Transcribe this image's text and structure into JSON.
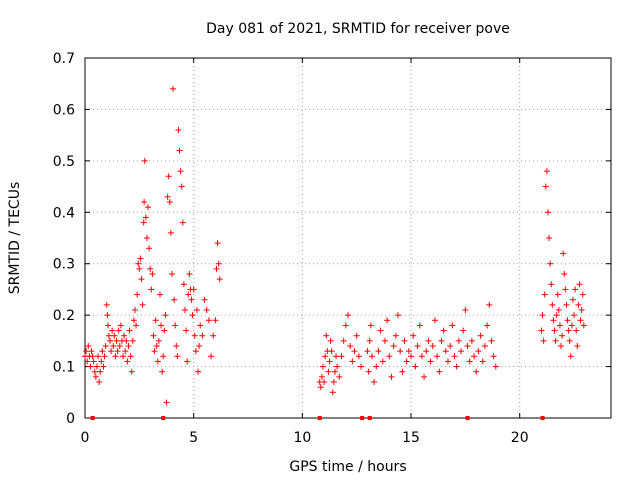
{
  "chart_data": {
    "type": "scatter",
    "title": "Day 081 of 2021, SRMTID for receiver pove",
    "xlabel": "GPS time / hours",
    "ylabel": "SRMTID / TECUs",
    "xlim": [
      0,
      24.2
    ],
    "ylim": [
      0,
      0.7
    ],
    "xticks": [
      0,
      5,
      10,
      15,
      20
    ],
    "xtick_labels": [
      "0",
      "5",
      "10",
      "15",
      "20"
    ],
    "yticks": [
      0,
      0.1,
      0.2,
      0.3,
      0.4,
      0.5,
      0.6,
      0.7
    ],
    "ytick_labels": [
      "0",
      "0.1",
      "0.2",
      "0.3",
      "0.4",
      "0.5",
      "0.6",
      "0.7"
    ],
    "grid": true,
    "marker": "+",
    "marker_color": "#ff0000",
    "series": [
      {
        "name": "SRMTID",
        "points": [
          [
            0.0,
            0.12
          ],
          [
            0.05,
            0.13
          ],
          [
            0.1,
            0.11
          ],
          [
            0.15,
            0.14
          ],
          [
            0.2,
            0.12
          ],
          [
            0.25,
            0.1
          ],
          [
            0.3,
            0.13
          ],
          [
            0.35,
            0.12
          ],
          [
            0.4,
            0.11
          ],
          [
            0.45,
            0.09
          ],
          [
            0.5,
            0.08
          ],
          [
            0.55,
            0.1
          ],
          [
            0.6,
            0.12
          ],
          [
            0.65,
            0.07
          ],
          [
            0.7,
            0.09
          ],
          [
            0.75,
            0.11
          ],
          [
            0.8,
            0.13
          ],
          [
            0.85,
            0.1
          ],
          [
            0.9,
            0.12
          ],
          [
            0.95,
            0.14
          ],
          [
            1.0,
            0.22
          ],
          [
            1.03,
            0.2
          ],
          [
            1.06,
            0.18
          ],
          [
            1.1,
            0.16
          ],
          [
            1.15,
            0.15
          ],
          [
            1.2,
            0.13
          ],
          [
            1.25,
            0.17
          ],
          [
            1.3,
            0.14
          ],
          [
            1.35,
            0.16
          ],
          [
            1.4,
            0.12
          ],
          [
            1.45,
            0.15
          ],
          [
            1.5,
            0.13
          ],
          [
            1.55,
            0.17
          ],
          [
            1.6,
            0.14
          ],
          [
            1.65,
            0.18
          ],
          [
            1.7,
            0.15
          ],
          [
            1.75,
            0.12
          ],
          [
            1.8,
            0.16
          ],
          [
            1.85,
            0.13
          ],
          [
            1.9,
            0.15
          ],
          [
            1.95,
            0.11
          ],
          [
            2.0,
            0.14
          ],
          [
            2.05,
            0.17
          ],
          [
            2.1,
            0.12
          ],
          [
            2.15,
            0.09
          ],
          [
            2.2,
            0.15
          ],
          [
            2.25,
            0.19
          ],
          [
            2.3,
            0.21
          ],
          [
            2.35,
            0.18
          ],
          [
            2.4,
            0.24
          ],
          [
            2.45,
            0.3
          ],
          [
            2.5,
            0.29
          ],
          [
            2.55,
            0.31
          ],
          [
            2.6,
            0.27
          ],
          [
            2.65,
            0.22
          ],
          [
            2.7,
            0.38
          ],
          [
            2.72,
            0.42
          ],
          [
            2.75,
            0.5
          ],
          [
            2.8,
            0.39
          ],
          [
            2.85,
            0.35
          ],
          [
            2.9,
            0.41
          ],
          [
            2.95,
            0.33
          ],
          [
            3.0,
            0.29
          ],
          [
            3.05,
            0.25
          ],
          [
            3.1,
            0.28
          ],
          [
            3.15,
            0.16
          ],
          [
            3.2,
            0.13
          ],
          [
            3.25,
            0.19
          ],
          [
            3.3,
            0.14
          ],
          [
            3.35,
            0.11
          ],
          [
            3.4,
            0.15
          ],
          [
            3.45,
            0.24
          ],
          [
            3.5,
            0.18
          ],
          [
            3.55,
            0.09
          ],
          [
            3.6,
            0.12
          ],
          [
            3.65,
            0.17
          ],
          [
            3.7,
            0.2
          ],
          [
            3.75,
            0.03
          ],
          [
            3.8,
            0.43
          ],
          [
            3.85,
            0.47
          ],
          [
            3.9,
            0.42
          ],
          [
            3.95,
            0.36
          ],
          [
            4.0,
            0.28
          ],
          [
            4.05,
            0.64
          ],
          [
            4.1,
            0.23
          ],
          [
            4.15,
            0.18
          ],
          [
            4.2,
            0.14
          ],
          [
            4.25,
            0.12
          ],
          [
            4.3,
            0.56
          ],
          [
            4.35,
            0.52
          ],
          [
            4.4,
            0.48
          ],
          [
            4.45,
            0.45
          ],
          [
            4.5,
            0.38
          ],
          [
            4.55,
            0.26
          ],
          [
            4.6,
            0.21
          ],
          [
            4.65,
            0.17
          ],
          [
            4.7,
            0.11
          ],
          [
            4.75,
            0.24
          ],
          [
            4.8,
            0.28
          ],
          [
            4.85,
            0.25
          ],
          [
            4.9,
            0.23
          ],
          [
            4.95,
            0.2
          ],
          [
            5.0,
            0.25
          ],
          [
            5.05,
            0.16
          ],
          [
            5.1,
            0.13
          ],
          [
            5.15,
            0.21
          ],
          [
            5.2,
            0.09
          ],
          [
            5.25,
            0.14
          ],
          [
            5.3,
            0.18
          ],
          [
            5.4,
            0.16
          ],
          [
            5.5,
            0.23
          ],
          [
            5.6,
            0.21
          ],
          [
            5.7,
            0.19
          ],
          [
            5.8,
            0.12
          ],
          [
            5.9,
            0.16
          ],
          [
            6.0,
            0.19
          ],
          [
            6.05,
            0.29
          ],
          [
            6.1,
            0.34
          ],
          [
            6.15,
            0.3
          ],
          [
            6.2,
            0.27
          ],
          [
            10.8,
            0.07
          ],
          [
            10.85,
            0.06
          ],
          [
            10.9,
            0.08
          ],
          [
            10.95,
            0.1
          ],
          [
            11.0,
            0.07
          ],
          [
            11.05,
            0.12
          ],
          [
            11.1,
            0.16
          ],
          [
            11.15,
            0.13
          ],
          [
            11.2,
            0.09
          ],
          [
            11.25,
            0.11
          ],
          [
            11.3,
            0.15
          ],
          [
            11.35,
            0.13
          ],
          [
            11.4,
            0.05
          ],
          [
            11.45,
            0.07
          ],
          [
            11.5,
            0.09
          ],
          [
            11.55,
            0.12
          ],
          [
            11.6,
            0.1
          ],
          [
            11.7,
            0.08
          ],
          [
            11.8,
            0.12
          ],
          [
            11.9,
            0.15
          ],
          [
            12.0,
            0.18
          ],
          [
            12.1,
            0.2
          ],
          [
            12.2,
            0.14
          ],
          [
            12.3,
            0.11
          ],
          [
            12.4,
            0.13
          ],
          [
            12.5,
            0.16
          ],
          [
            12.6,
            0.12
          ],
          [
            12.7,
            0.1
          ],
          [
            13.0,
            0.13
          ],
          [
            13.05,
            0.09
          ],
          [
            13.1,
            0.15
          ],
          [
            13.15,
            0.18
          ],
          [
            13.2,
            0.12
          ],
          [
            13.3,
            0.07
          ],
          [
            13.4,
            0.1
          ],
          [
            13.5,
            0.13
          ],
          [
            13.6,
            0.17
          ],
          [
            13.7,
            0.11
          ],
          [
            13.8,
            0.15
          ],
          [
            13.9,
            0.19
          ],
          [
            14.0,
            0.12
          ],
          [
            14.1,
            0.08
          ],
          [
            14.2,
            0.14
          ],
          [
            14.3,
            0.16
          ],
          [
            14.4,
            0.2
          ],
          [
            14.5,
            0.13
          ],
          [
            14.6,
            0.09
          ],
          [
            14.7,
            0.15
          ],
          [
            14.8,
            0.11
          ],
          [
            14.9,
            0.13
          ],
          [
            15.0,
            0.12
          ],
          [
            15.1,
            0.16
          ],
          [
            15.2,
            0.1
          ],
          [
            15.3,
            0.14
          ],
          [
            15.4,
            0.18
          ],
          [
            15.5,
            0.12
          ],
          [
            15.6,
            0.08
          ],
          [
            15.7,
            0.13
          ],
          [
            15.8,
            0.15
          ],
          [
            15.9,
            0.11
          ],
          [
            16.0,
            0.14
          ],
          [
            16.1,
            0.19
          ],
          [
            16.2,
            0.12
          ],
          [
            16.3,
            0.09
          ],
          [
            16.4,
            0.15
          ],
          [
            16.5,
            0.17
          ],
          [
            16.6,
            0.13
          ],
          [
            16.7,
            0.11
          ],
          [
            16.8,
            0.14
          ],
          [
            16.9,
            0.18
          ],
          [
            17.0,
            0.12
          ],
          [
            17.1,
            0.1
          ],
          [
            17.2,
            0.15
          ],
          [
            17.3,
            0.13
          ],
          [
            17.4,
            0.17
          ],
          [
            17.5,
            0.21
          ],
          [
            17.6,
            0.14
          ],
          [
            17.7,
            0.11
          ],
          [
            17.8,
            0.15
          ],
          [
            17.9,
            0.12
          ],
          [
            18.0,
            0.09
          ],
          [
            18.1,
            0.13
          ],
          [
            18.2,
            0.16
          ],
          [
            18.3,
            0.11
          ],
          [
            18.4,
            0.14
          ],
          [
            18.5,
            0.18
          ],
          [
            18.6,
            0.22
          ],
          [
            18.7,
            0.15
          ],
          [
            18.8,
            0.12
          ],
          [
            18.9,
            0.1
          ],
          [
            21.0,
            0.17
          ],
          [
            21.05,
            0.2
          ],
          [
            21.1,
            0.15
          ],
          [
            21.15,
            0.24
          ],
          [
            21.2,
            0.45
          ],
          [
            21.25,
            0.48
          ],
          [
            21.3,
            0.4
          ],
          [
            21.35,
            0.35
          ],
          [
            21.4,
            0.3
          ],
          [
            21.45,
            0.26
          ],
          [
            21.5,
            0.22
          ],
          [
            21.55,
            0.19
          ],
          [
            21.6,
            0.17
          ],
          [
            21.65,
            0.15
          ],
          [
            21.7,
            0.2
          ],
          [
            21.75,
            0.24
          ],
          [
            21.8,
            0.21
          ],
          [
            21.85,
            0.18
          ],
          [
            21.9,
            0.14
          ],
          [
            21.95,
            0.16
          ],
          [
            22.0,
            0.32
          ],
          [
            22.05,
            0.28
          ],
          [
            22.1,
            0.25
          ],
          [
            22.15,
            0.22
          ],
          [
            22.2,
            0.19
          ],
          [
            22.25,
            0.17
          ],
          [
            22.3,
            0.15
          ],
          [
            22.35,
            0.12
          ],
          [
            22.4,
            0.18
          ],
          [
            22.45,
            0.23
          ],
          [
            22.5,
            0.2
          ],
          [
            22.55,
            0.25
          ],
          [
            22.6,
            0.17
          ],
          [
            22.65,
            0.14
          ],
          [
            22.7,
            0.22
          ],
          [
            22.75,
            0.26
          ],
          [
            22.8,
            0.19
          ],
          [
            22.85,
            0.21
          ],
          [
            22.9,
            0.24
          ],
          [
            22.95,
            0.18
          ]
        ]
      }
    ],
    "baseline_markers": [
      0.35,
      3.6,
      10.8,
      12.75,
      13.1,
      17.6,
      21.05
    ]
  }
}
